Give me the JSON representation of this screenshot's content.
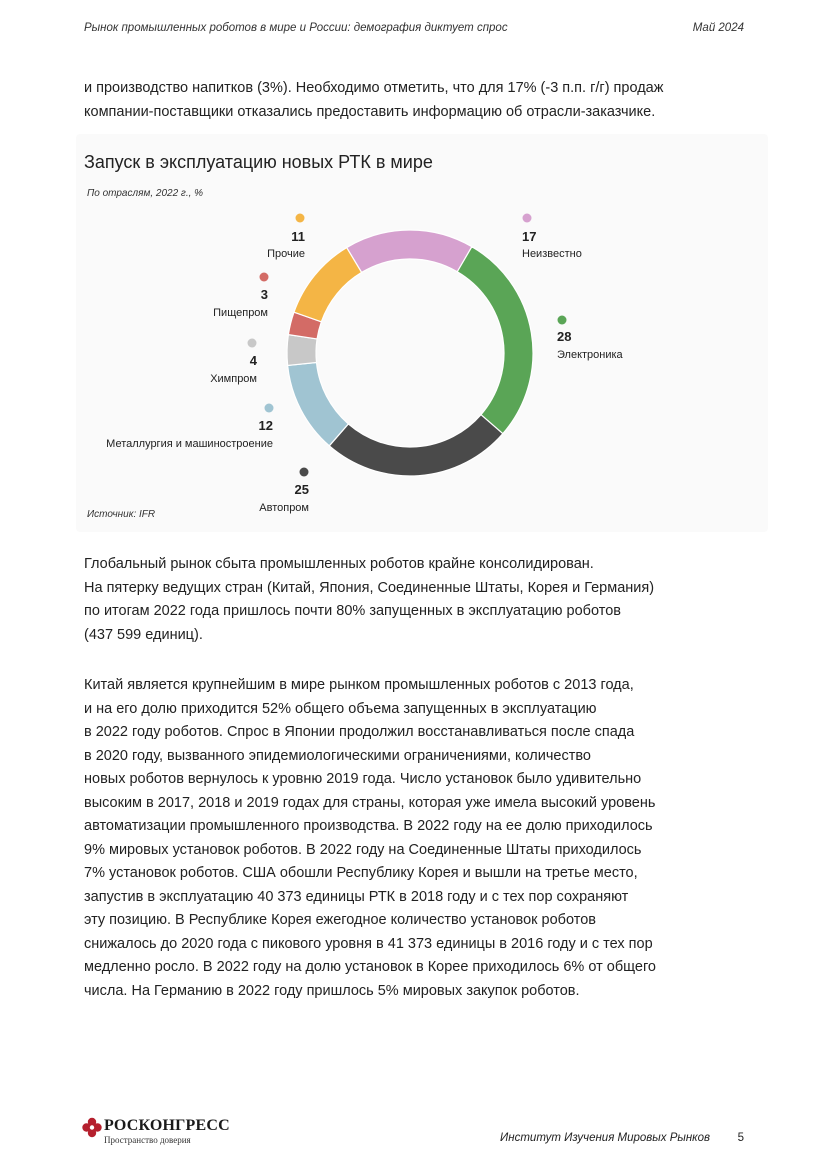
{
  "header": {
    "title": "Рынок промышленных роботов в мире и России: демография диктует спрос",
    "date": "Май 2024"
  },
  "intro_lines": [
    "и производство напитков (3%). Необходимо отметить, что для 17% (-3 п.п. г/г) продаж",
    "компании-поставщики отказались предоставить информацию об отрасли-заказчике."
  ],
  "chart_data": {
    "type": "pie",
    "title": "Запуск в эксплуатацию новых РТК в мире",
    "subtitle": "По отраслям, 2022 г., %",
    "source": "Источник: IFR",
    "slices": [
      {
        "label": "Неизвестно",
        "value": 17,
        "color": "#d6a1cf"
      },
      {
        "label": "Электроника",
        "value": 28,
        "color": "#5aa556"
      },
      {
        "label": "Автопром",
        "value": 25,
        "color": "#4a4a4a"
      },
      {
        "label": "Металлургия и машиностроение",
        "value": 12,
        "color": "#a0c4d2"
      },
      {
        "label": "Химпром",
        "value": 4,
        "color": "#c8c8c8"
      },
      {
        "label": "Пищепром",
        "value": 3,
        "color": "#d36b66"
      },
      {
        "label": "Прочие",
        "value": 11,
        "color": "#f4b545"
      }
    ]
  },
  "para1_lines": [
    "Глобальный рынок сбыта промышленных роботов крайне консолидирован.",
    "На пятерку ведущих стран (Китай, Япония, Соединенные Штаты, Корея и Германия)",
    "по итогам 2022 года пришлось почти 80% запущенных в эксплуатацию роботов",
    "(437 599 единиц)."
  ],
  "para2_lines": [
    "Китай является крупнейшим в мире рынком промышленных роботов с 2013 года,",
    "и на его долю приходится 52% общего объема запущенных в эксплуатацию",
    "в 2022 году роботов. Спрос в Японии продолжил восстанавливаться после спада",
    "в 2020 году, вызванного эпидемиологическими ограничениями, количество",
    "новых роботов вернулось к уровню 2019 года. Число установок было удивительно",
    "высоким в 2017, 2018 и 2019 годах для страны, которая уже имела высокий уровень",
    "автоматизации промышленного производства. В 2022 году на ее долю приходилось",
    "9% мировых установок роботов. В 2022 году на Соединенные Штаты приходилось",
    "7% установок роботов. США обошли Республику Корея и вышли на третье место,",
    "запустив в эксплуатацию 40 373 единицы РТК в 2018 году и с тех пор сохраняют",
    "эту позицию. В Республике Корея ежегодное количество установок роботов",
    "снижалось до 2020 года с пикового уровня в 41 373 единицы в 2016 году и с тех пор",
    "медленно росло. В 2022 году на долю установок в Корее приходилось 6% от общего",
    "числа. На Германию в 2022 году пришлось 5% мировых закупок роботов."
  ],
  "footer": {
    "logo_text": "РОСКОНГРЕСС",
    "logo_tagline": "Пространство доверия",
    "institute": "Институт Изучения Мировых Рынков",
    "page": "5"
  }
}
